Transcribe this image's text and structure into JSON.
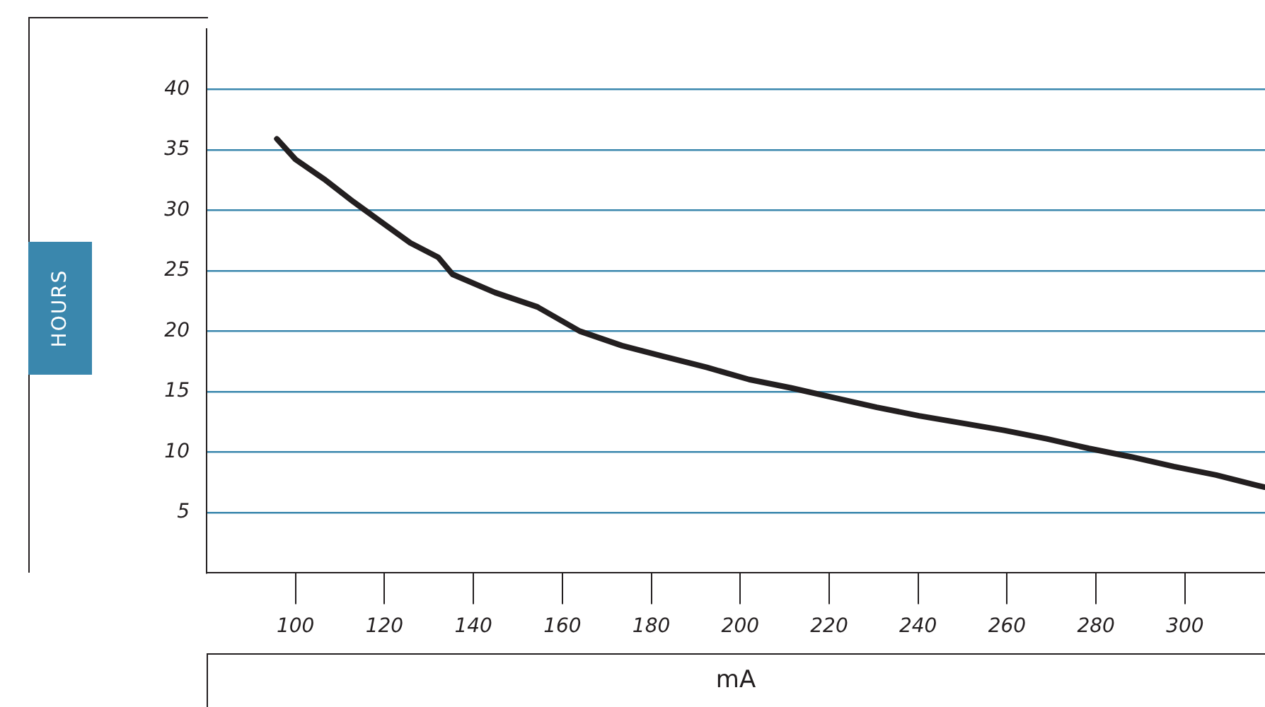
{
  "chart_data": {
    "type": "line",
    "xlabel": "mA",
    "ylabel": "HOURS",
    "x": [
      95.8,
      100,
      106.7,
      113,
      119.4,
      125.8,
      132.1,
      135.3,
      144.8,
      154.4,
      163.9,
      173.4,
      182.9,
      192.5,
      202,
      211.5,
      221,
      230.7,
      240.2,
      249.8,
      259.3,
      268.9,
      278.4,
      287.9,
      297.5,
      307,
      317.8
    ],
    "series": [
      {
        "color": "#231f20",
        "values": [
          35.9,
          34.2,
          32.5,
          30.7,
          29,
          27.3,
          26.1,
          24.7,
          23.2,
          22,
          20,
          18.8,
          17.9,
          17,
          16,
          15.3,
          14.5,
          13.7,
          13,
          12.4,
          11.8,
          11.1,
          10.3,
          9.6,
          8.8,
          8.1,
          7.1
        ]
      }
    ],
    "xlim": [
      80,
      318
    ],
    "ylim": [
      0,
      45
    ],
    "xticks": [
      100,
      120,
      140,
      160,
      180,
      200,
      220,
      240,
      260,
      280,
      300
    ],
    "yticks": [
      5,
      10,
      15,
      20,
      25,
      30,
      35,
      40
    ],
    "grid": "y",
    "legend": false,
    "marker": "none",
    "line_style": "solid"
  }
}
